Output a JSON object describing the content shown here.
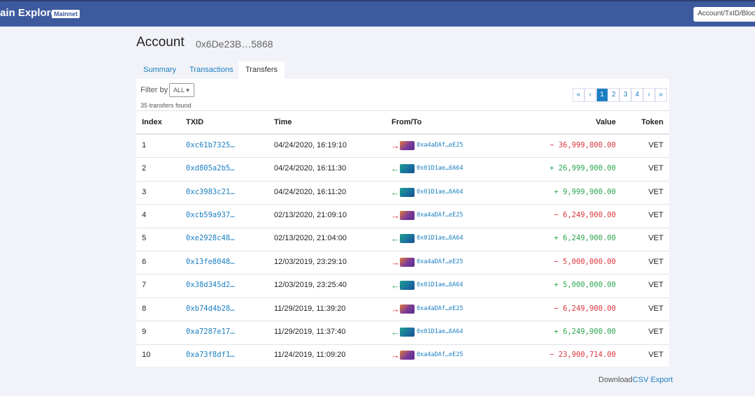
{
  "header": {
    "brand": "ain Explorer",
    "badge": "Mainnet",
    "search_placeholder": "Account/TxID/Blocke"
  },
  "account": {
    "title": "Account",
    "address": "0x6De23B…5868"
  },
  "tabs": [
    "Summary",
    "Transactions",
    "Transfers"
  ],
  "filter": {
    "label": "Filter by",
    "option": "ALL"
  },
  "count": "35 transfers found",
  "pagination": [
    "«",
    "‹",
    "1",
    "2",
    "3",
    "4",
    "›",
    "»"
  ],
  "table": {
    "headers": [
      "Index",
      "TXID",
      "Time",
      "From/To",
      "Value",
      "Token"
    ],
    "rows": [
      [
        1,
        "0xc61b7325…",
        "04/24/2020, 16:19:10",
        "0xa4aDAf…eE25",
        "− 36,999,800.00",
        "VET"
      ],
      [
        2,
        "0xd805a2b5…",
        "04/24/2020, 16:11:30",
        "0x01D1ae…6A64",
        "+ 26,999,900.00",
        "VET"
      ],
      [
        3,
        "0xc3983c21…",
        "04/24/2020, 16:11:20",
        "0x01D1ae…6A64",
        "+ 9,999,900.00",
        "VET"
      ],
      [
        4,
        "0xcb59a937…",
        "02/13/2020, 21:09:10",
        "0xa4aDAf…eE25",
        "− 6,249,900.00",
        "VET"
      ],
      [
        5,
        "0xe2928c48…",
        "02/13/2020, 21:04:00",
        "0x01D1ae…6A64",
        "+ 6,249,900.00",
        "VET"
      ],
      [
        6,
        "0x13fe8048…",
        "12/03/2019, 23:29:10",
        "0xa4aDAf…eE25",
        "− 5,000,000.00",
        "VET"
      ],
      [
        7,
        "0x38d345d2…",
        "12/03/2019, 23:25:40",
        "0x01D1ae…6A64",
        "+ 5,000,000.00",
        "VET"
      ],
      [
        8,
        "0xb74d4b28…",
        "11/29/2019, 11:39:20",
        "0xa4aDAf…eE25",
        "− 6,249,900.00",
        "VET"
      ],
      [
        9,
        "0xa7287e17…",
        "11/29/2019, 11:37:40",
        "0x01D1ae…6A64",
        "+ 6,249,900.00",
        "VET"
      ],
      [
        10,
        "0xa73f8df1…",
        "11/24/2019, 11:09:20",
        "0xa4aDAf…eE25",
        "− 23,900,714.00",
        "VET"
      ]
    ]
  },
  "footer": {
    "text": "Download",
    "link": "CSV Export"
  }
}
